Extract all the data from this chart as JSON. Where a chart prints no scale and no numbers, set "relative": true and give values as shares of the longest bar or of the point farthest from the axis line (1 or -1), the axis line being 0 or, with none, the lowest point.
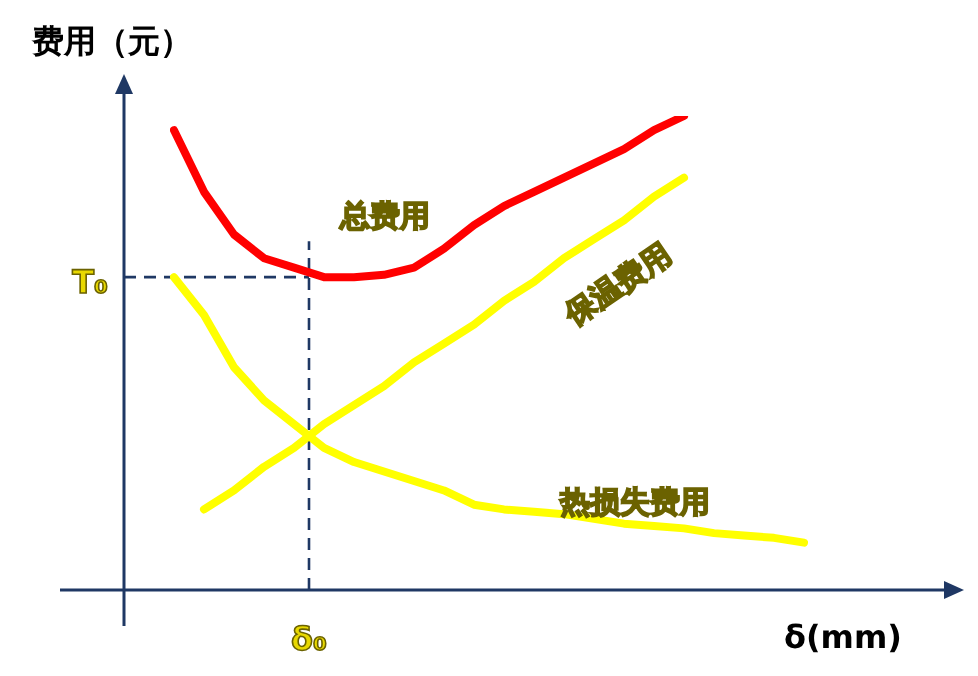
{
  "chart_data": {
    "type": "line",
    "relative": true,
    "ylabel": "费用（元）",
    "xlabel": "δ(mm)",
    "tick_labels": false,
    "marker": "none",
    "categories": [
      null,
      null,
      null,
      null,
      null,
      null,
      null,
      null,
      null,
      null,
      null,
      null,
      null,
      null,
      null,
      null,
      null,
      null,
      null,
      null,
      null,
      null
    ],
    "series": [
      {
        "name": "总费用",
        "color": "#ff0000",
        "values": [
          0.97,
          0.84,
          0.75,
          0.7,
          0.68,
          0.66,
          0.66,
          0.665,
          0.68,
          0.72,
          0.77,
          0.81,
          0.84,
          0.87,
          0.9,
          0.93,
          0.97,
          1.0,
          null,
          null,
          null,
          null
        ]
      },
      {
        "name": "保温费用",
        "color": "#ffff00",
        "values": [
          null,
          0.17,
          0.21,
          0.26,
          0.3,
          0.35,
          0.39,
          0.43,
          0.48,
          0.52,
          0.56,
          0.61,
          0.65,
          0.7,
          0.74,
          0.78,
          0.83,
          0.87,
          null,
          null,
          null,
          null
        ]
      },
      {
        "name": "热损失费用",
        "color": "#ffff00",
        "values": [
          0.66,
          0.58,
          0.47,
          0.4,
          0.35,
          0.3,
          0.27,
          0.25,
          0.23,
          0.21,
          0.18,
          0.17,
          0.165,
          0.16,
          0.15,
          0.14,
          0.135,
          0.13,
          0.12,
          0.115,
          0.11,
          0.1
        ]
      }
    ],
    "ref_lines": [
      {
        "axis": "y",
        "value": 0.66,
        "label": "T₀",
        "color": "#1f3864",
        "line_style": "dashed"
      },
      {
        "axis": "x",
        "label": "δ₀",
        "color": "#1f3864",
        "line_style": "dashed"
      }
    ]
  }
}
